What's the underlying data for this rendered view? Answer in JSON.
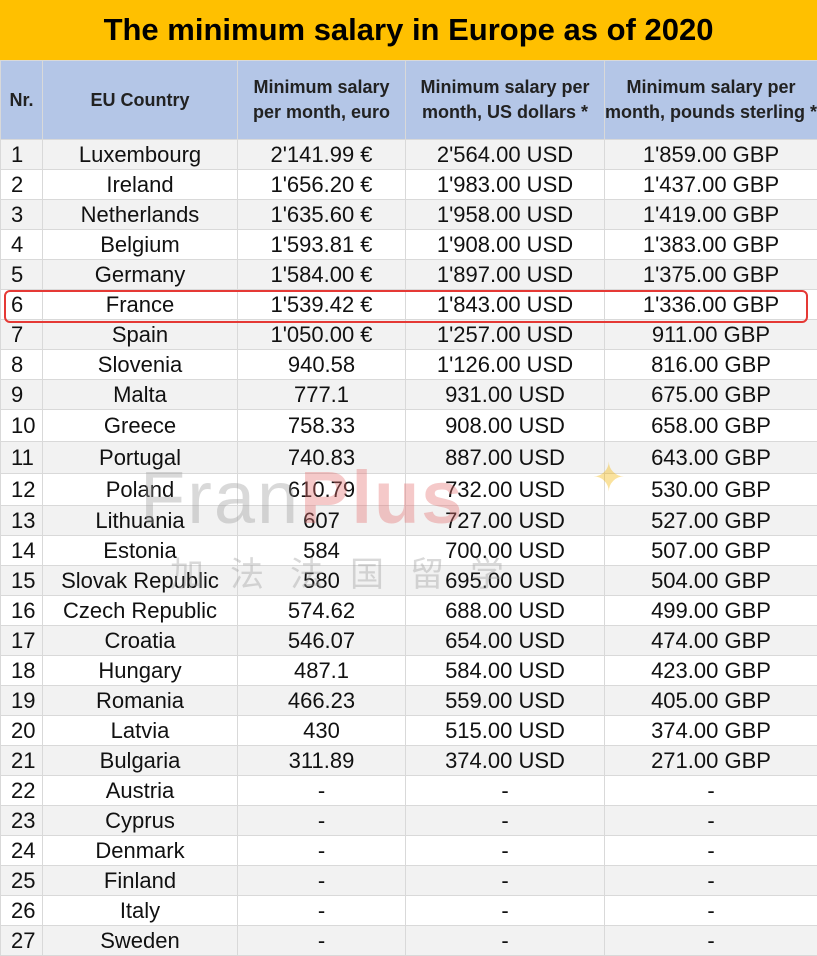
{
  "title": "The minimum salary in Europe as of 2020",
  "table": {
    "headers": {
      "nr": "Nr.",
      "country": "EU Country",
      "eur": "Minimum salary per month, euro",
      "usd": "Minimum salary per month, US dollars *",
      "gbp": "Minimum salary per month, pounds sterling *"
    },
    "rows": [
      {
        "nr": "1",
        "country": "Luxembourg",
        "eur": "2'141.99 €",
        "usd": "2'564.00 USD",
        "gbp": "1'859.00 GBP"
      },
      {
        "nr": "2",
        "country": "Ireland",
        "eur": "1'656.20 €",
        "usd": "1'983.00 USD",
        "gbp": "1'437.00 GBP"
      },
      {
        "nr": "3",
        "country": "Netherlands",
        "eur": "1'635.60 €",
        "usd": "1'958.00 USD",
        "gbp": "1'419.00 GBP"
      },
      {
        "nr": "4",
        "country": "Belgium",
        "eur": "1'593.81 €",
        "usd": "1'908.00 USD",
        "gbp": "1'383.00 GBP"
      },
      {
        "nr": "5",
        "country": "Germany",
        "eur": "1'584.00 €",
        "usd": "1'897.00 USD",
        "gbp": "1'375.00 GBP"
      },
      {
        "nr": "6",
        "country": "France",
        "eur": "1'539.42 €",
        "usd": "1'843.00 USD",
        "gbp": "1'336.00 GBP"
      },
      {
        "nr": "7",
        "country": "Spain",
        "eur": "1'050.00 €",
        "usd": "1'257.00 USD",
        "gbp": "911.00 GBP"
      },
      {
        "nr": "8",
        "country": "Slovenia",
        "eur": "940.58",
        "usd": "1'126.00 USD",
        "gbp": "816.00 GBP"
      },
      {
        "nr": "9",
        "country": "Malta",
        "eur": "777.1",
        "usd": "931.00 USD",
        "gbp": "675.00 GBP"
      },
      {
        "nr": "10",
        "country": "Greece",
        "eur": "758.33",
        "usd": "908.00 USD",
        "gbp": "658.00 GBP"
      },
      {
        "nr": "11",
        "country": "Portugal",
        "eur": "740.83",
        "usd": "887.00 USD",
        "gbp": "643.00 GBP"
      },
      {
        "nr": "12",
        "country": "Poland",
        "eur": "610.79",
        "usd": "732.00 USD",
        "gbp": "530.00 GBP"
      },
      {
        "nr": "13",
        "country": "Lithuania",
        "eur": "607",
        "usd": "727.00 USD",
        "gbp": "527.00 GBP"
      },
      {
        "nr": "14",
        "country": "Estonia",
        "eur": "584",
        "usd": "700.00 USD",
        "gbp": "507.00 GBP"
      },
      {
        "nr": "15",
        "country": "Slovak Republic",
        "eur": "580",
        "usd": "695.00 USD",
        "gbp": "504.00 GBP"
      },
      {
        "nr": "16",
        "country": "Czech Republic",
        "eur": "574.62",
        "usd": "688.00 USD",
        "gbp": "499.00 GBP"
      },
      {
        "nr": "17",
        "country": "Croatia",
        "eur": "546.07",
        "usd": "654.00 USD",
        "gbp": "474.00 GBP"
      },
      {
        "nr": "18",
        "country": "Hungary",
        "eur": "487.1",
        "usd": "584.00 USD",
        "gbp": "423.00 GBP"
      },
      {
        "nr": "19",
        "country": "Romania",
        "eur": "466.23",
        "usd": "559.00 USD",
        "gbp": "405.00 GBP"
      },
      {
        "nr": "20",
        "country": "Latvia",
        "eur": "430",
        "usd": "515.00 USD",
        "gbp": "374.00 GBP"
      },
      {
        "nr": "21",
        "country": "Bulgaria",
        "eur": "311.89",
        "usd": "374.00 USD",
        "gbp": "271.00 GBP"
      },
      {
        "nr": "22",
        "country": "Austria",
        "eur": "-",
        "usd": "-",
        "gbp": "-"
      },
      {
        "nr": "23",
        "country": "Cyprus",
        "eur": "-",
        "usd": "-",
        "gbp": "-"
      },
      {
        "nr": "24",
        "country": "Denmark",
        "eur": "-",
        "usd": "-",
        "gbp": "-"
      },
      {
        "nr": "25",
        "country": "Finland",
        "eur": "-",
        "usd": "-",
        "gbp": "-"
      },
      {
        "nr": "26",
        "country": "Italy",
        "eur": "-",
        "usd": "-",
        "gbp": "-"
      },
      {
        "nr": "27",
        "country": "Sweden",
        "eur": "-",
        "usd": "-",
        "gbp": "-"
      }
    ]
  },
  "watermark": {
    "brand_a": "Fran",
    "brand_b": "Plus",
    "subtitle": "加法法国留学"
  },
  "colors": {
    "title_background": "#ffc000",
    "header_background": "#b4c6e7",
    "highlight_border": "#e53935"
  }
}
